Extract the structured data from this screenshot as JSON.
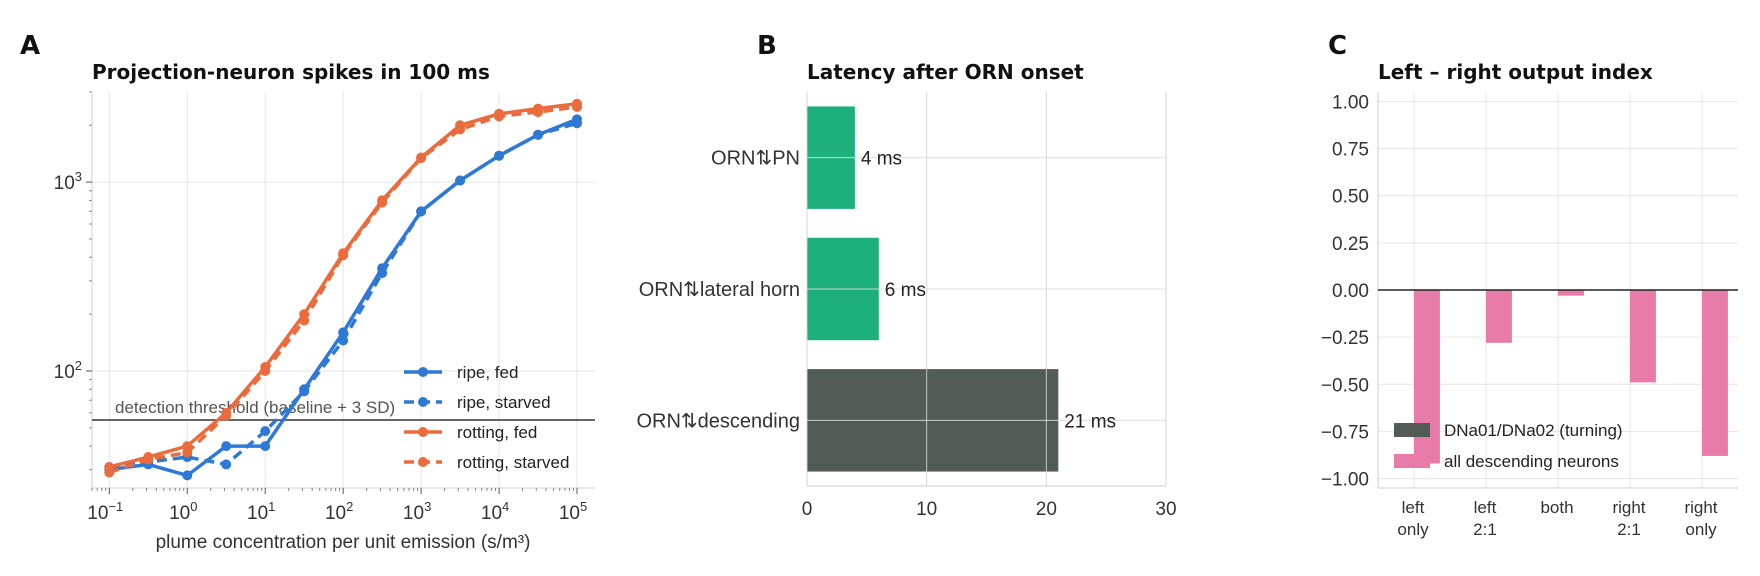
{
  "panels": {
    "a": {
      "letter": "A",
      "title": "Projection-neuron spikes in 100 ms"
    },
    "b": {
      "letter": "B",
      "title": "Latency after ORN onset"
    },
    "c": {
      "letter": "C",
      "title": "Left – right output index"
    }
  },
  "chart_data": [
    {
      "id": "a",
      "type": "line",
      "title": "Projection-neuron spikes in 100 ms",
      "xlabel": "plume concentration per unit emission (s/m³)",
      "ylabel": "",
      "xscale": "log",
      "yscale": "log",
      "xlim": [
        0.06,
        170000
      ],
      "ylim": [
        24,
        3000
      ],
      "x_ticks": [
        {
          "value": 0.1,
          "base": "10",
          "exp": "−1"
        },
        {
          "value": 1,
          "base": "10",
          "exp": "0"
        },
        {
          "value": 10,
          "base": "10",
          "exp": "1"
        },
        {
          "value": 100,
          "base": "10",
          "exp": "2"
        },
        {
          "value": 1000,
          "base": "10",
          "exp": "3"
        },
        {
          "value": 10000,
          "base": "10",
          "exp": "4"
        },
        {
          "value": 100000,
          "base": "10",
          "exp": "5"
        }
      ],
      "y_ticks": [
        {
          "value": 100,
          "base": "10",
          "exp": "2"
        },
        {
          "value": 1000,
          "base": "10",
          "exp": "3"
        }
      ],
      "grid": true,
      "legend": "lower-right",
      "x": [
        0.1,
        0.316,
        1,
        3.16,
        10,
        31.6,
        100,
        316,
        1000,
        3160,
        10000,
        31600,
        100000
      ],
      "series": [
        {
          "name": "ripe, fed",
          "color": "#2f79d6",
          "style": "solid",
          "values": [
            30,
            32,
            28,
            40,
            40,
            80,
            160,
            350,
            700,
            1020,
            1380,
            1780,
            2150
          ]
        },
        {
          "name": "ripe, starved",
          "color": "#2f79d6",
          "style": "dashed",
          "values": [
            31,
            33,
            35,
            32,
            48,
            78,
            145,
            330,
            700,
            1020,
            1380,
            1780,
            2050
          ]
        },
        {
          "name": "rotting, fed",
          "color": "#eb6b3c",
          "style": "solid",
          "values": [
            31,
            35,
            40,
            60,
            105,
            200,
            420,
            800,
            1350,
            2000,
            2300,
            2450,
            2600
          ]
        },
        {
          "name": "rotting, starved",
          "color": "#eb6b3c",
          "style": "dashed",
          "values": [
            29,
            34,
            37,
            58,
            100,
            185,
            410,
            780,
            1340,
            1900,
            2230,
            2350,
            2500
          ]
        }
      ],
      "hline": {
        "value": 55,
        "label": "detection threshold (baseline + 3 SD)"
      }
    },
    {
      "id": "b",
      "type": "bar",
      "orientation": "horizontal",
      "title": "Latency after ORN onset",
      "categories": [
        "ORN⇅PN",
        "ORN⇅lateral horn",
        "ORN⇅descending"
      ],
      "values": [
        4,
        6,
        21
      ],
      "value_labels": [
        "4 ms",
        "6 ms",
        "21 ms"
      ],
      "colors": [
        "#1db07a",
        "#1db07a",
        "#525b56"
      ],
      "xlim": [
        0,
        30
      ],
      "x_ticks": [
        0,
        10,
        20,
        30
      ],
      "grid": true
    },
    {
      "id": "c",
      "type": "bar",
      "title": "Left – right output index",
      "categories": [
        "left\nonly",
        "left\n2:1",
        "both",
        "right\n2:1",
        "right\nonly"
      ],
      "series": [
        {
          "name": "DNa01/DNa02 (turning)",
          "color": "#525b56",
          "values": [
            0,
            0,
            0,
            0,
            0
          ]
        },
        {
          "name": "all descending neurons",
          "color": "#e97ba8",
          "values": [
            -0.92,
            -0.28,
            -0.03,
            -0.49,
            -0.88
          ]
        }
      ],
      "ylim": [
        -1.05,
        1.05
      ],
      "y_ticks": [
        "1.00",
        "0.75",
        "0.50",
        "0.25",
        "0.00",
        "−0.25",
        "−0.50",
        "−0.75",
        "−1.00"
      ],
      "y_tick_values": [
        1,
        0.75,
        0.5,
        0.25,
        0,
        -0.25,
        -0.5,
        -0.75,
        -1
      ],
      "grid": true,
      "legend": "lower-left"
    }
  ]
}
